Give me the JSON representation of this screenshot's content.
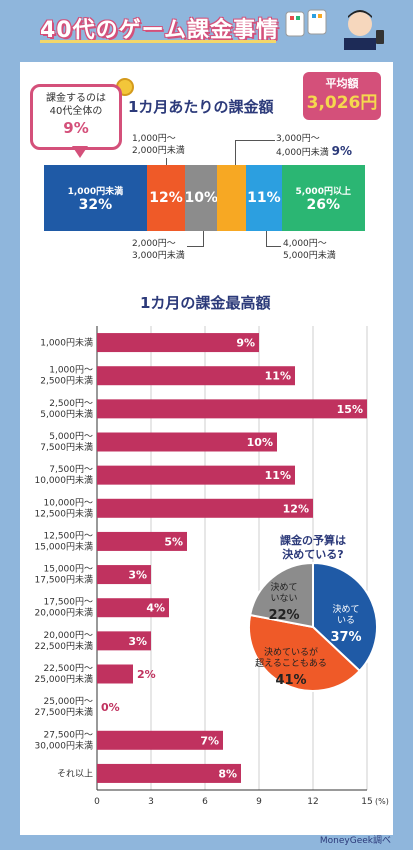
{
  "header": {
    "title": "40代のゲーム課金事情"
  },
  "stacked": {
    "title": "1カ月あたりの課金額",
    "average_label": "平均額",
    "average_value": "3,026円",
    "bubble_line1": "課金するのは",
    "bubble_line2": "40代全体の",
    "bubble_pct": "9%",
    "segments": [
      {
        "label": "1,000円未満",
        "pct": "32%",
        "value": 32,
        "color": "#1f5aa6"
      },
      {
        "label": "1,000円〜 2,000円未満",
        "pct": "12%",
        "value": 12,
        "color": "#ef5a28"
      },
      {
        "label": "2,000円〜 3,000円未満",
        "pct": "10%",
        "value": 10,
        "color": "#8c8c8c"
      },
      {
        "label": "3,000円〜 4,000円未満",
        "pct": "9%",
        "value": 9,
        "color": "#f7a823"
      },
      {
        "label": "4,000円〜 5,000円未満",
        "pct": "11%",
        "value": 11,
        "color": "#2c9fe0"
      },
      {
        "label": "5,000円以上",
        "pct": "26%",
        "value": 26,
        "color": "#2bb673"
      }
    ],
    "callout_1000": [
      "1,000円〜",
      "2,000円未満"
    ],
    "callout_2000": [
      "2,000円〜",
      "3,000円未満"
    ],
    "callout_3000": [
      "3,000円〜",
      "4,000円未満"
    ],
    "callout_3000_pct": "9%",
    "callout_4000": [
      "4,000円〜",
      "5,000円未満"
    ]
  },
  "bars_title": "1カ月の課金最高額",
  "chart_data": [
    {
      "type": "bar",
      "title": "1カ月の課金最高額",
      "orientation": "horizontal",
      "categories": [
        [
          "1,000円未満"
        ],
        [
          "1,000円〜",
          "2,500円未満"
        ],
        [
          "2,500円〜",
          "5,000円未満"
        ],
        [
          "5,000円〜",
          "7,500円未満"
        ],
        [
          "7,500円〜",
          "10,000円未満"
        ],
        [
          "10,000円〜",
          "12,500円未満"
        ],
        [
          "12,500円〜",
          "15,000円未満"
        ],
        [
          "15,000円〜",
          "17,500円未満"
        ],
        [
          "17,500円〜",
          "20,000円未満"
        ],
        [
          "20,000円〜",
          "22,500円未満"
        ],
        [
          "22,500円〜",
          "25,000円未満"
        ],
        [
          "25,000円〜",
          "27,500円未満"
        ],
        [
          "27,500円〜",
          "30,000円未満"
        ],
        [
          "それ以上"
        ]
      ],
      "values": [
        9,
        11,
        15,
        10,
        11,
        12,
        5,
        3,
        4,
        3,
        2,
        0,
        7,
        8
      ],
      "value_labels": [
        "9%",
        "11%",
        "15%",
        "10%",
        "11%",
        "12%",
        "5%",
        "3%",
        "4%",
        "3%",
        "2%",
        "0%",
        "7%",
        "8%"
      ],
      "xlim": [
        0,
        15
      ],
      "xticks": [
        "0",
        "3",
        "6",
        "9",
        "12",
        "15"
      ],
      "xunit": "(%)",
      "bar_color": "#c0325f",
      "grid": true
    },
    {
      "type": "pie",
      "title": "課金の予算は決めている?",
      "slices": [
        {
          "label": "決めている",
          "pct": "37%",
          "value": 37,
          "color": "#1f5aa6"
        },
        {
          "label": "決めているが超えることもある",
          "pct": "41%",
          "value": 41,
          "color": "#ef5a28"
        },
        {
          "label": "決めていない",
          "pct": "22%",
          "value": 22,
          "color": "#8c8c8c"
        }
      ]
    }
  ],
  "pie_title_line1": "課金の予算は",
  "pie_title_line2": "決めている?",
  "pie_label_a": [
    "決めて",
    "いる"
  ],
  "pie_label_b": [
    "決めているが",
    "超えることもある"
  ],
  "pie_label_c": [
    "決めて",
    "いない"
  ],
  "credit": "MoneyGeek調べ"
}
